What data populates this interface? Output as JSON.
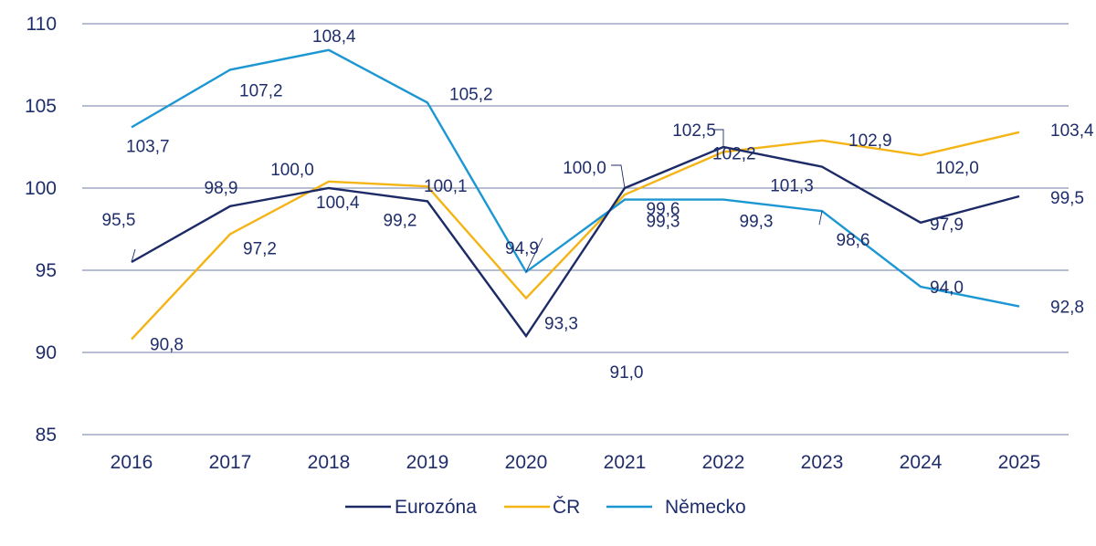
{
  "chart_data": {
    "type": "line",
    "title": "",
    "xlabel": "",
    "ylabel": "",
    "categories": [
      "2016",
      "2017",
      "2018",
      "2019",
      "2020",
      "2021",
      "2022",
      "2023",
      "2024",
      "2025"
    ],
    "ylim": [
      85,
      110
    ],
    "yticks": [
      85,
      90,
      95,
      100,
      105,
      110
    ],
    "ytick_labels": [
      "85",
      "90",
      "95",
      "100",
      "105",
      "110"
    ],
    "grid": true,
    "legend_position": "bottom",
    "series": [
      {
        "name": "Eurozóna",
        "color": "#1c2a66",
        "values": [
          95.5,
          98.9,
          100.0,
          99.2,
          91.0,
          100.0,
          102.5,
          101.3,
          97.9,
          99.5
        ],
        "labels": [
          "95,5",
          "98,9",
          "100,0",
          "99,2",
          "91,0",
          "100,0",
          "102,5",
          "101,3",
          "97,9",
          "99,5"
        ]
      },
      {
        "name": "ČR",
        "color": "#f5b415",
        "values": [
          90.8,
          97.2,
          100.4,
          100.1,
          93.3,
          99.6,
          102.2,
          102.9,
          102.0,
          103.4
        ],
        "labels": [
          "90,8",
          "97,2",
          "100,4",
          "100,1",
          "93,3",
          "99,6",
          "102,2",
          "102,9",
          "102,0",
          "103,4"
        ]
      },
      {
        "name": "Německo",
        "color": "#1d97d3",
        "values": [
          103.7,
          107.2,
          108.4,
          105.2,
          94.9,
          99.3,
          99.3,
          98.6,
          94.0,
          92.8
        ],
        "labels": [
          "103,7",
          "107,2",
          "108,4",
          "105,2",
          "94,9",
          "99,3",
          "99,3",
          "98,6",
          "94,0",
          "92,8"
        ]
      }
    ]
  }
}
